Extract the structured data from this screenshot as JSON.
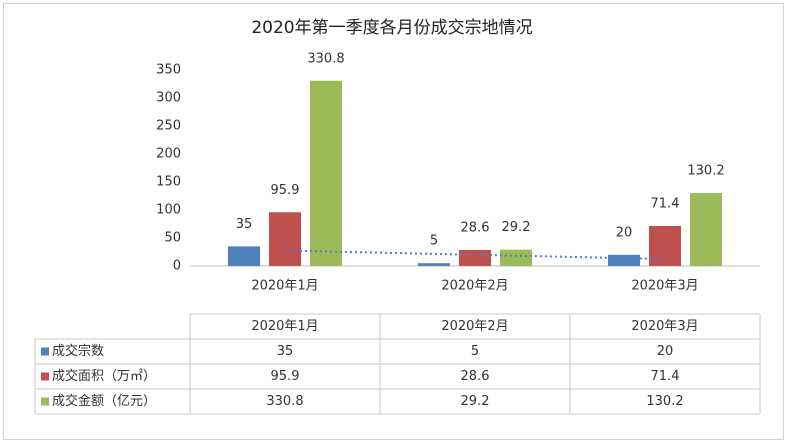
{
  "chart_data": {
    "type": "bar",
    "title": "2020年第一季度各月份成交宗地情况",
    "categories": [
      "2020年1月",
      "2020年2月",
      "2020年3月"
    ],
    "series": [
      {
        "name": "成交宗数",
        "color": "#4f81bd",
        "values": [
          35,
          5,
          20
        ],
        "trendline": true
      },
      {
        "name": "成交面积（万㎡）",
        "color": "#c0504d",
        "values": [
          95.9,
          28.6,
          71.4
        ]
      },
      {
        "name": "成交金额（亿元）",
        "color": "#9bbb59",
        "values": [
          330.8,
          29.2,
          130.2
        ]
      }
    ],
    "ylim": [
      0,
      350
    ],
    "yticks": [
      0,
      50,
      100,
      150,
      200,
      250,
      300,
      350
    ],
    "data_table": true
  }
}
